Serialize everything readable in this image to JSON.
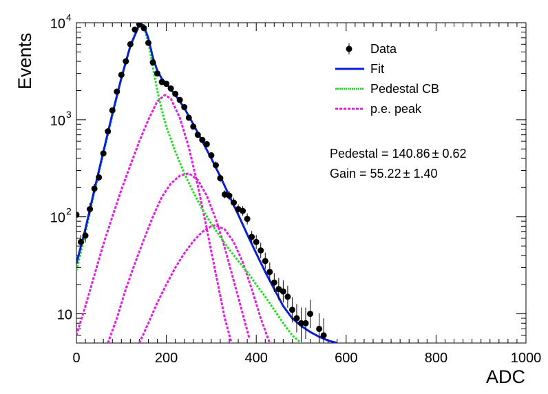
{
  "chart_data": {
    "type": "line",
    "xlabel": "ADC",
    "ylabel": "Events",
    "xlim": [
      0,
      1000
    ],
    "ylim": [
      5,
      10000
    ],
    "yscale": "log",
    "grid": false,
    "legend_position": "top-right",
    "x_ticks": [
      0,
      200,
      400,
      600,
      800,
      1000
    ],
    "y_ticks": [
      {
        "value": 10,
        "base": "10",
        "exp": ""
      },
      {
        "value": 100,
        "base": "10",
        "exp": "2"
      },
      {
        "value": 1000,
        "base": "10",
        "exp": "3"
      },
      {
        "value": 10000,
        "base": "10",
        "exp": "4"
      }
    ],
    "legend": [
      {
        "label": "Data",
        "style": "marker",
        "color": "#000000"
      },
      {
        "label": "Fit",
        "style": "solid",
        "color": "#0a1ed6"
      },
      {
        "label": "Pedestal CB",
        "style": "dotted",
        "color": "#22dd22"
      },
      {
        "label": "p.e. peak",
        "style": "dashed",
        "color": "#e020e0"
      }
    ],
    "annotations": [
      {
        "prefix": "Pedestal = 140.86",
        "pm": "±",
        "suffix": " 0.62"
      },
      {
        "prefix": "Gain = 55.22",
        "pm": "±",
        "suffix": " 1.40"
      }
    ],
    "series": [
      {
        "name": "Data",
        "kind": "points",
        "color": "#000000",
        "points": [
          [
            0,
            105,
            1.2
          ],
          [
            10,
            55,
            1.18
          ],
          [
            20,
            64,
            1.18
          ],
          [
            30,
            120,
            1.15
          ],
          [
            40,
            195,
            1.12
          ],
          [
            50,
            255,
            1.1
          ],
          [
            60,
            450,
            1.08
          ],
          [
            70,
            760,
            1.06
          ],
          [
            80,
            1250,
            1.05
          ],
          [
            90,
            1950,
            1.04
          ],
          [
            100,
            2900,
            1.03
          ],
          [
            110,
            4000,
            1.03
          ],
          [
            120,
            6000,
            1.02
          ],
          [
            130,
            8500,
            1.02
          ],
          [
            140,
            9600,
            1.02
          ],
          [
            150,
            8800,
            1.02
          ],
          [
            160,
            6200,
            1.02
          ],
          [
            170,
            3900,
            1.03
          ],
          [
            180,
            3000,
            1.03
          ],
          [
            190,
            2450,
            1.03
          ],
          [
            200,
            2350,
            1.04
          ],
          [
            210,
            2100,
            1.04
          ],
          [
            220,
            1850,
            1.04
          ],
          [
            230,
            1600,
            1.04
          ],
          [
            240,
            1350,
            1.05
          ],
          [
            250,
            1050,
            1.05
          ],
          [
            260,
            850,
            1.06
          ],
          [
            270,
            700,
            1.06
          ],
          [
            280,
            620,
            1.07
          ],
          [
            290,
            560,
            1.07
          ],
          [
            300,
            430,
            1.08
          ],
          [
            310,
            340,
            1.09
          ],
          [
            320,
            250,
            1.1
          ],
          [
            330,
            170,
            1.1
          ],
          [
            340,
            165,
            1.11
          ],
          [
            350,
            140,
            1.12
          ],
          [
            360,
            120,
            1.12
          ],
          [
            370,
            115,
            1.12
          ],
          [
            380,
            95,
            1.14
          ],
          [
            390,
            62,
            1.15
          ],
          [
            400,
            55,
            1.18
          ],
          [
            410,
            45,
            1.2
          ],
          [
            420,
            35,
            1.22
          ],
          [
            430,
            27,
            1.25
          ],
          [
            440,
            21,
            1.25
          ],
          [
            450,
            18,
            1.3
          ],
          [
            460,
            17,
            1.3
          ],
          [
            470,
            15,
            1.3
          ],
          [
            480,
            11,
            1.35
          ],
          [
            490,
            9,
            1.4
          ],
          [
            500,
            8,
            1.45
          ],
          [
            510,
            8,
            1.45
          ],
          [
            520,
            10,
            1.4
          ],
          [
            540,
            7,
            1.45
          ],
          [
            550,
            6,
            1.5
          ]
        ]
      },
      {
        "name": "Fit",
        "kind": "line",
        "color": "#0a1ed6",
        "points": [
          [
            0,
            33
          ],
          [
            20,
            75
          ],
          [
            40,
            190
          ],
          [
            60,
            470
          ],
          [
            80,
            1150
          ],
          [
            100,
            2700
          ],
          [
            120,
            5800
          ],
          [
            140,
            9600
          ],
          [
            150,
            9400
          ],
          [
            160,
            6900
          ],
          [
            170,
            4400
          ],
          [
            180,
            3200
          ],
          [
            190,
            2650
          ],
          [
            200,
            2350
          ],
          [
            220,
            1800
          ],
          [
            240,
            1320
          ],
          [
            260,
            900
          ],
          [
            280,
            600
          ],
          [
            300,
            400
          ],
          [
            320,
            260
          ],
          [
            340,
            165
          ],
          [
            360,
            105
          ],
          [
            380,
            66
          ],
          [
            400,
            42
          ],
          [
            420,
            27
          ],
          [
            440,
            18
          ],
          [
            460,
            12
          ],
          [
            480,
            9
          ],
          [
            500,
            7.5
          ],
          [
            520,
            6.5
          ],
          [
            540,
            5.8
          ],
          [
            560,
            5.3
          ],
          [
            580,
            5
          ]
        ]
      },
      {
        "name": "Pedestal CB",
        "kind": "line",
        "color": "#22dd22",
        "points": [
          [
            0,
            28
          ],
          [
            20,
            68
          ],
          [
            40,
            180
          ],
          [
            60,
            450
          ],
          [
            80,
            1100
          ],
          [
            100,
            2650
          ],
          [
            120,
            5700
          ],
          [
            140,
            9400
          ],
          [
            150,
            9000
          ],
          [
            160,
            6300
          ],
          [
            170,
            3500
          ],
          [
            180,
            2000
          ],
          [
            190,
            1250
          ],
          [
            200,
            850
          ],
          [
            220,
            470
          ],
          [
            240,
            280
          ],
          [
            260,
            180
          ],
          [
            280,
            120
          ],
          [
            300,
            85
          ],
          [
            320,
            62
          ],
          [
            340,
            46
          ],
          [
            360,
            35
          ],
          [
            380,
            27
          ],
          [
            400,
            20
          ],
          [
            420,
            15
          ],
          [
            440,
            11
          ],
          [
            460,
            8
          ],
          [
            480,
            6
          ],
          [
            500,
            5
          ]
        ]
      },
      {
        "name": "p.e. peak 1",
        "kind": "line",
        "color": "#e020e0",
        "points": [
          [
            0,
            6
          ],
          [
            20,
            12
          ],
          [
            40,
            25
          ],
          [
            60,
            52
          ],
          [
            80,
            100
          ],
          [
            100,
            190
          ],
          [
            120,
            340
          ],
          [
            140,
            600
          ],
          [
            160,
            1000
          ],
          [
            180,
            1550
          ],
          [
            197,
            1800
          ],
          [
            210,
            1650
          ],
          [
            230,
            1050
          ],
          [
            250,
            520
          ],
          [
            270,
            210
          ],
          [
            290,
            75
          ],
          [
            310,
            26
          ],
          [
            330,
            9
          ],
          [
            345,
            5
          ]
        ]
      },
      {
        "name": "p.e. peak 2",
        "kind": "line",
        "color": "#e020e0",
        "points": [
          [
            70,
            5
          ],
          [
            90,
            9
          ],
          [
            110,
            18
          ],
          [
            130,
            33
          ],
          [
            150,
            58
          ],
          [
            170,
            100
          ],
          [
            190,
            160
          ],
          [
            210,
            220
          ],
          [
            230,
            265
          ],
          [
            250,
            280
          ],
          [
            270,
            240
          ],
          [
            290,
            165
          ],
          [
            310,
            95
          ],
          [
            330,
            48
          ],
          [
            350,
            22
          ],
          [
            370,
            10
          ],
          [
            385,
            5.5
          ]
        ]
      },
      {
        "name": "p.e. peak 3",
        "kind": "line",
        "color": "#e020e0",
        "points": [
          [
            140,
            5
          ],
          [
            160,
            8
          ],
          [
            180,
            13
          ],
          [
            200,
            20
          ],
          [
            220,
            30
          ],
          [
            240,
            42
          ],
          [
            260,
            56
          ],
          [
            280,
            70
          ],
          [
            300,
            80
          ],
          [
            310,
            82
          ],
          [
            330,
            74
          ],
          [
            350,
            55
          ],
          [
            370,
            34
          ],
          [
            390,
            18
          ],
          [
            410,
            9
          ],
          [
            430,
            5
          ]
        ]
      }
    ]
  }
}
